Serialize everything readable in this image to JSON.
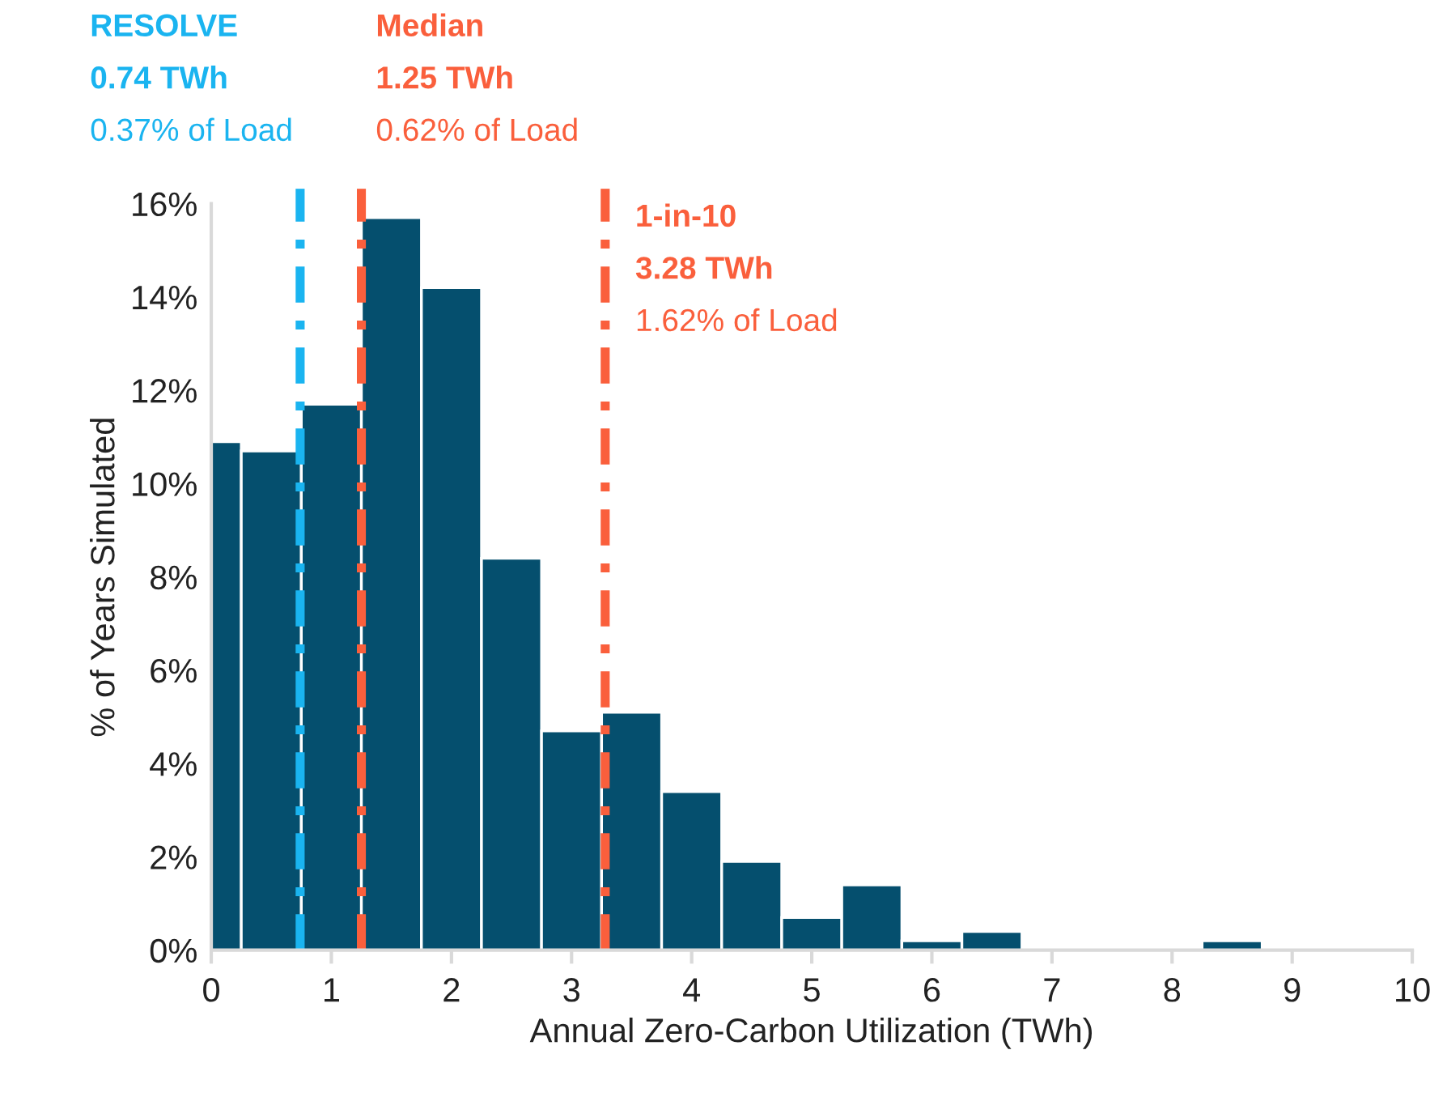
{
  "chart_data": {
    "type": "histogram",
    "xlabel": "Annual Zero-Carbon Utilization (TWh)",
    "ylabel": "% of Years Simulated",
    "bins": [
      0,
      0.25,
      0.75,
      1.25,
      1.75,
      2.25,
      2.75,
      3.25,
      3.75,
      4.25,
      4.75,
      5.25,
      5.75,
      6.25,
      6.75,
      8.25,
      8.75
    ],
    "values": [
      10.9,
      10.7,
      11.7,
      15.7,
      14.2,
      8.4,
      4.7,
      5.1,
      3.4,
      1.9,
      0.7,
      1.4,
      0.2,
      0.4,
      0,
      0.2
    ],
    "color": "#054f6e",
    "xlim": [
      0,
      10
    ],
    "xticks": [
      0,
      1,
      2,
      3,
      4,
      5,
      6,
      7,
      8,
      9,
      10
    ],
    "ylim": [
      0,
      16
    ],
    "yticks": [
      {
        "value": 0,
        "label": "0%"
      },
      {
        "value": 2,
        "label": "2%"
      },
      {
        "value": 4,
        "label": "4%"
      },
      {
        "value": 6,
        "label": "6%"
      },
      {
        "value": 8,
        "label": "8%"
      },
      {
        "value": 10,
        "label": "10%"
      },
      {
        "value": 12,
        "label": "12%"
      },
      {
        "value": 14,
        "label": "14%"
      },
      {
        "value": 16,
        "label": "16%"
      }
    ],
    "grid": false,
    "ref_lines": [
      {
        "axis": "x",
        "value": 0.74,
        "label": "RESOLVE\n0.74 TWh\n0.37% of Load",
        "color": "#1ab4f0",
        "line_style": "dashdot"
      },
      {
        "axis": "x",
        "value": 1.25,
        "label": "Median\n1.25 TWh\n0.62% of Load",
        "color": "#fa5f3c",
        "line_style": "dashdot"
      },
      {
        "axis": "x",
        "value": 3.28,
        "label": "1-in-10\n3.28 TWh\n1.62% of Load",
        "color": "#fa5f3c",
        "line_style": "dashdot"
      }
    ]
  }
}
